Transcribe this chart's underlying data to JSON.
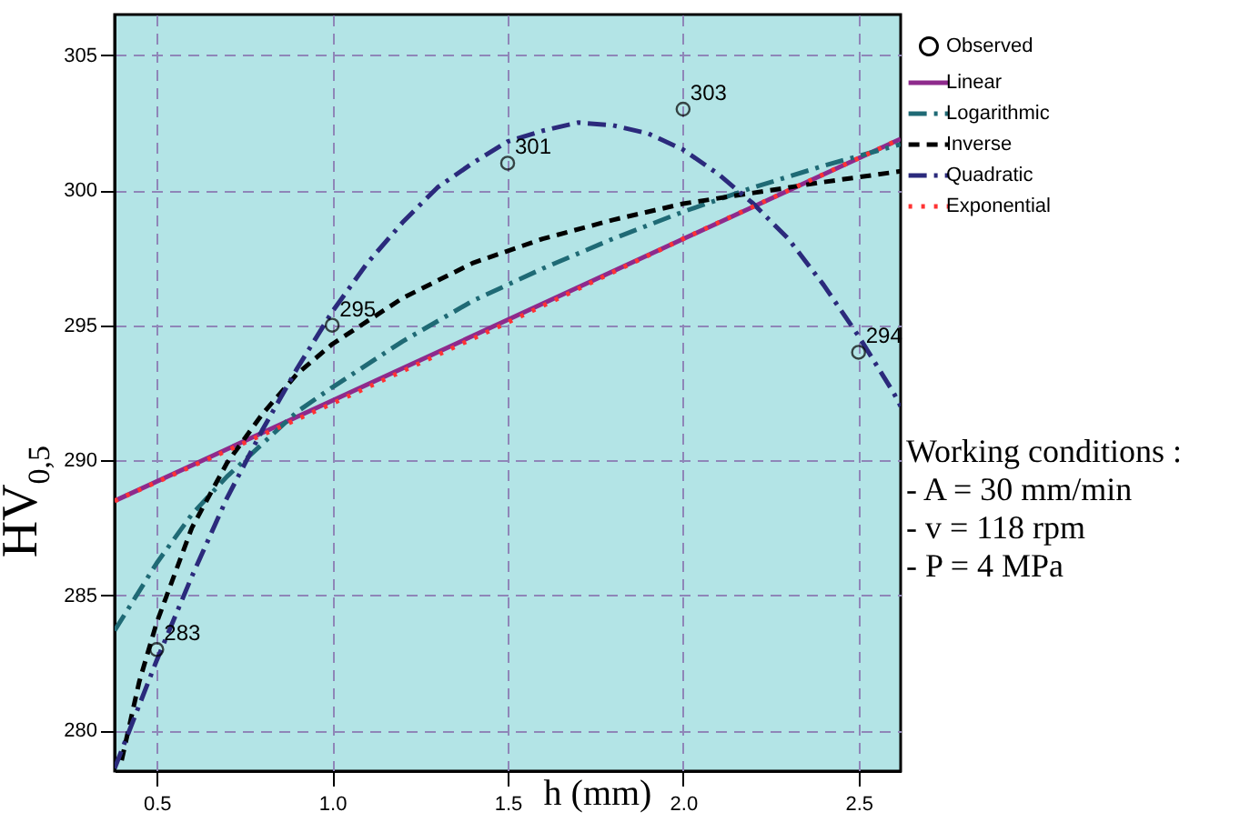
{
  "chart_data": {
    "type": "line",
    "xlabel": "h (mm)",
    "ylabel": "HV$_{0,5}$",
    "xlim": [
      0.38,
      2.62
    ],
    "ylim": [
      278.5,
      306.5
    ],
    "xticks": [
      0.5,
      {
        "value": 1,
        "label": "1.0"
      },
      1.5,
      {
        "value": 2,
        "label": "2.0"
      },
      2.5
    ],
    "yticks": [
      280,
      285,
      290,
      295,
      300,
      305
    ],
    "grid": true,
    "legend": "top right",
    "annotations": [
      "Working conditions :",
      "- A = 30 mm/min",
      "- v = 118 rpm",
      "- P = 4 MPa"
    ],
    "series": [
      {
        "name": "Observed",
        "type": "scatter",
        "marker": "circle",
        "color": "#000000",
        "x": [
          0.5,
          1.0,
          1.5,
          2.0,
          2.5
        ],
        "values": [
          283,
          295,
          301,
          303,
          294
        ],
        "value_labels": [
          "283",
          "295",
          "301",
          "303",
          "294"
        ]
      },
      {
        "name": "Linear",
        "line_style": "solid",
        "color": "#8e2a8c",
        "x": [
          0.38,
          2.62
        ],
        "values": [
          288.5,
          301.9
        ]
      },
      {
        "name": "Logarithmic",
        "line_style": "dashdot",
        "color": "#1f6a75",
        "x": [
          0.38,
          0.5,
          0.6,
          0.7,
          0.8,
          0.9,
          1.0,
          1.2,
          1.4,
          1.6,
          1.8,
          2.0,
          2.2,
          2.4,
          2.62
        ],
        "values": [
          283.7,
          286.2,
          288.0,
          289.4,
          290.6,
          291.8,
          292.7,
          294.4,
          295.9,
          297.1,
          298.2,
          299.2,
          300.1,
          300.9,
          301.7
        ]
      },
      {
        "name": "Inverse",
        "line_style": "dashed",
        "color": "#000000",
        "x": [
          0.4,
          0.45,
          0.5,
          0.6,
          0.7,
          0.8,
          0.9,
          1.0,
          1.2,
          1.4,
          1.6,
          1.8,
          2.0,
          2.2,
          2.4,
          2.62
        ],
        "values": [
          278.9,
          281.8,
          284.0,
          287.5,
          289.9,
          291.7,
          293.2,
          294.3,
          296.0,
          297.3,
          298.2,
          298.9,
          299.5,
          299.9,
          300.3,
          300.7
        ]
      },
      {
        "name": "Quadratic",
        "line_style": "dashdot",
        "color": "#2b2a7c",
        "x": [
          0.38,
          0.5,
          0.6,
          0.7,
          0.8,
          0.9,
          1.0,
          1.1,
          1.2,
          1.3,
          1.4,
          1.5,
          1.6,
          1.7,
          1.8,
          1.9,
          2.0,
          2.1,
          2.2,
          2.3,
          2.4,
          2.5,
          2.6,
          2.62
        ],
        "values": [
          278.6,
          282.6,
          285.7,
          288.6,
          291.1,
          293.4,
          295.5,
          297.3,
          298.8,
          300.1,
          301.0,
          301.8,
          302.2,
          302.5,
          302.4,
          302.1,
          301.5,
          300.6,
          299.5,
          298.2,
          296.5,
          294.6,
          292.5,
          292.0
        ]
      },
      {
        "name": "Exponential",
        "line_style": "dotted",
        "color": "#ff3333",
        "x": [
          0.38,
          1.0,
          1.5,
          2.0,
          2.62
        ],
        "values": [
          288.5,
          292.1,
          295.1,
          298.2,
          301.9
        ]
      }
    ]
  }
}
